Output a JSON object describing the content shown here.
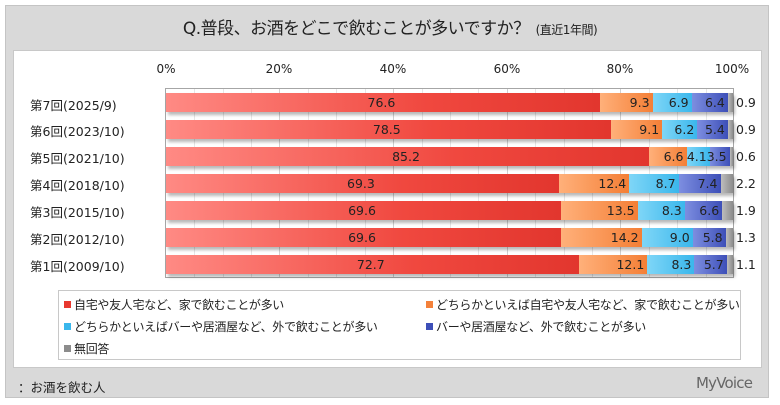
{
  "header": {
    "title": "Q.普段、お酒をどこで飲むことが多いですか？",
    "subtitle": "(直近1年間)"
  },
  "axis": {
    "ticks": [
      "0%",
      "20%",
      "40%",
      "60%",
      "80%",
      "100%"
    ]
  },
  "rows": [
    {
      "label": "第7回(2025/9)",
      "v": [
        "76.6",
        "9.3",
        "6.9",
        "6.4"
      ],
      "na": "0.9"
    },
    {
      "label": "第6回(2023/10)",
      "v": [
        "78.5",
        "9.1",
        "6.2",
        "5.4"
      ],
      "na": "0.9"
    },
    {
      "label": "第5回(2021/10)",
      "v": [
        "85.2",
        "6.6",
        "4.1",
        "3.5"
      ],
      "na": "0.6"
    },
    {
      "label": "第4回(2018/10)",
      "v": [
        "69.3",
        "12.4",
        "8.7",
        "7.4"
      ],
      "na": "2.2"
    },
    {
      "label": "第3回(2015/10)",
      "v": [
        "69.6",
        "13.5",
        "8.3",
        "6.6"
      ],
      "na": "1.9"
    },
    {
      "label": "第2回(2012/10)",
      "v": [
        "69.6",
        "14.2",
        "9.0",
        "5.8"
      ],
      "na": "1.3"
    },
    {
      "label": "第1回(2009/10)",
      "v": [
        "72.7",
        "12.1",
        "8.3",
        "5.7"
      ],
      "na": "1.1"
    }
  ],
  "legend": {
    "items": [
      {
        "label": "自宅や友人宅など、家で飲むことが多い",
        "color": "#e8382f"
      },
      {
        "label": "どちらかといえば自宅や友人宅など、家で飲むことが多い",
        "color": "#f4813a"
      },
      {
        "label": "どちらかといえばバーや居酒屋など、外で飲むことが多い",
        "color": "#3ab7ec"
      },
      {
        "label": "バーや居酒屋など、外で飲むことが多い",
        "color": "#3d4fb8"
      },
      {
        "label": "無回答",
        "color": "#8c8c8c"
      }
    ]
  },
  "footer": {
    "note": "：お酒を飲む人",
    "brand": "MyVoice"
  },
  "chart_data": {
    "type": "bar",
    "orientation": "horizontal",
    "stacked": true,
    "percent_stacked": true,
    "title": "Q.普段、お酒をどこで飲むことが多いですか？ (直近1年間)",
    "xlabel": "",
    "ylabel": "",
    "xlim": [
      0,
      100
    ],
    "x_ticks": [
      "0%",
      "20%",
      "40%",
      "60%",
      "80%",
      "100%"
    ],
    "grid": true,
    "legend_position": "bottom",
    "categories": [
      "第7回(2025/9)",
      "第6回(2023/10)",
      "第5回(2021/10)",
      "第4回(2018/10)",
      "第3回(2015/10)",
      "第2回(2012/10)",
      "第1回(2009/10)"
    ],
    "series": [
      {
        "name": "自宅や友人宅など、家で飲むことが多い",
        "color": "#e8382f",
        "values": [
          76.6,
          78.5,
          85.2,
          69.3,
          69.6,
          69.6,
          72.7
        ]
      },
      {
        "name": "どちらかといえば自宅や友人宅など、家で飲むことが多い",
        "color": "#f4813a",
        "values": [
          9.3,
          9.1,
          6.6,
          12.4,
          13.5,
          14.2,
          12.1
        ]
      },
      {
        "name": "どちらかといえばバーや居酒屋など、外で飲むことが多い",
        "color": "#3ab7ec",
        "values": [
          6.9,
          6.2,
          4.1,
          8.7,
          8.3,
          9.0,
          8.3
        ]
      },
      {
        "name": "バーや居酒屋など、外で飲むことが多い",
        "color": "#3d4fb8",
        "values": [
          6.4,
          5.4,
          3.5,
          7.4,
          6.6,
          5.8,
          5.7
        ]
      },
      {
        "name": "無回答",
        "color": "#8c8c8c",
        "values": [
          0.9,
          0.9,
          0.6,
          2.2,
          1.9,
          1.3,
          1.1
        ]
      }
    ],
    "footnote": "：お酒を飲む人",
    "source": "MyVoice"
  }
}
